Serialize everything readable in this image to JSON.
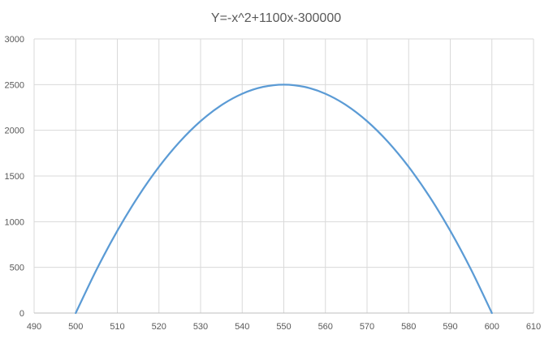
{
  "chart_data": {
    "type": "line",
    "title": "Y=-x^2+1100x-300000",
    "xlabel": "",
    "ylabel": "",
    "xlim": [
      490,
      610
    ],
    "ylim": [
      0,
      3000
    ],
    "x_ticks": [
      490,
      500,
      510,
      520,
      530,
      540,
      550,
      560,
      570,
      580,
      590,
      600,
      610
    ],
    "y_ticks": [
      0,
      500,
      1000,
      1500,
      2000,
      2500,
      3000
    ],
    "grid": true,
    "legend": "none",
    "series": [
      {
        "color": "#5b9bd5",
        "x": [
          500,
          505,
          510,
          515,
          520,
          525,
          530,
          535,
          540,
          545,
          550,
          555,
          560,
          565,
          570,
          575,
          580,
          585,
          590,
          595,
          600
        ],
        "y": [
          0,
          475,
          900,
          1275,
          1600,
          1875,
          2100,
          2275,
          2400,
          2475,
          2500,
          2475,
          2400,
          2275,
          2100,
          1875,
          1600,
          1275,
          900,
          475,
          0
        ]
      }
    ]
  },
  "colors": {
    "grid": "#d9d9d9",
    "axis": "#bfbfbf",
    "text": "#595959",
    "line": "#5b9bd5"
  }
}
